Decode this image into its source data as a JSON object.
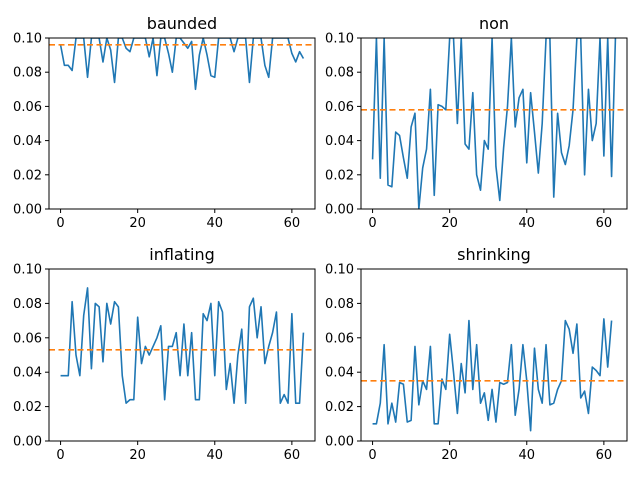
{
  "colors": {
    "series": "#1f77b4",
    "mean": "#ff7f0e",
    "axes": "#000000"
  },
  "chart_data": [
    {
      "type": "line",
      "title": "baunded",
      "xlim": [
        -3,
        66
      ],
      "ylim": [
        0,
        0.1
      ],
      "xticks": [
        0,
        20,
        40,
        60
      ],
      "yticks": [
        0.0,
        0.02,
        0.04,
        0.06,
        0.08,
        0.1
      ],
      "ytick_labels": [
        "0.00",
        "0.02",
        "0.04",
        "0.06",
        "0.08",
        "0.10"
      ],
      "mean_line": 0.096,
      "series": [
        {
          "values": [
            0.096,
            0.084,
            0.084,
            0.081,
            0.1,
            0.1,
            0.1,
            0.077,
            0.1,
            0.1,
            0.1,
            0.086,
            0.1,
            0.093,
            0.074,
            0.1,
            0.1,
            0.094,
            0.092,
            0.1,
            0.1,
            0.1,
            0.1,
            0.089,
            0.1,
            0.078,
            0.1,
            0.1,
            0.091,
            0.08,
            0.1,
            0.1,
            0.097,
            0.094,
            0.098,
            0.07,
            0.09,
            0.1,
            0.09,
            0.078,
            0.077,
            0.1,
            0.1,
            0.1,
            0.1,
            0.092,
            0.1,
            0.1,
            0.1,
            0.074,
            0.1,
            0.1,
            0.1,
            0.084,
            0.077,
            0.1,
            0.1,
            0.1,
            0.1,
            0.1,
            0.091,
            0.086,
            0.092,
            0.088
          ]
        }
      ]
    },
    {
      "type": "line",
      "title": "non",
      "xlim": [
        -3,
        66
      ],
      "ylim": [
        0,
        0.1
      ],
      "xticks": [
        0,
        20,
        40,
        60
      ],
      "yticks": [
        0.0,
        0.02,
        0.04,
        0.06,
        0.08,
        0.1
      ],
      "ytick_labels": [
        "0.00",
        "0.02",
        "0.04",
        "0.06",
        "0.08",
        "0.10"
      ],
      "mean_line": 0.058,
      "series": [
        {
          "values": [
            0.029,
            0.1,
            0.018,
            0.1,
            0.014,
            0.013,
            0.045,
            0.043,
            0.03,
            0.018,
            0.048,
            0.056,
            0.0,
            0.024,
            0.035,
            0.07,
            0.008,
            0.061,
            0.06,
            0.058,
            0.1,
            0.1,
            0.05,
            0.1,
            0.038,
            0.035,
            0.068,
            0.02,
            0.011,
            0.04,
            0.035,
            0.1,
            0.025,
            0.005,
            0.036,
            0.06,
            0.1,
            0.048,
            0.065,
            0.07,
            0.027,
            0.068,
            0.045,
            0.021,
            0.05,
            0.1,
            0.1,
            0.007,
            0.056,
            0.033,
            0.026,
            0.037,
            0.058,
            0.1,
            0.1,
            0.02,
            0.07,
            0.04,
            0.05,
            0.1,
            0.031,
            0.1,
            0.019,
            0.1
          ]
        }
      ]
    },
    {
      "type": "line",
      "title": "inflating",
      "xlim": [
        -3,
        66
      ],
      "ylim": [
        0,
        0.1
      ],
      "xticks": [
        0,
        20,
        40,
        60
      ],
      "yticks": [
        0.0,
        0.02,
        0.04,
        0.06,
        0.08,
        0.1
      ],
      "ytick_labels": [
        "0.00",
        "0.02",
        "0.04",
        "0.06",
        "0.08",
        "0.10"
      ],
      "mean_line": 0.053,
      "series": [
        {
          "values": [
            0.038,
            0.038,
            0.038,
            0.081,
            0.05,
            0.038,
            0.073,
            0.089,
            0.042,
            0.08,
            0.078,
            0.046,
            0.08,
            0.068,
            0.081,
            0.078,
            0.038,
            0.022,
            0.024,
            0.024,
            0.072,
            0.045,
            0.055,
            0.05,
            0.055,
            0.06,
            0.067,
            0.024,
            0.055,
            0.055,
            0.063,
            0.038,
            0.068,
            0.038,
            0.063,
            0.024,
            0.024,
            0.074,
            0.07,
            0.08,
            0.038,
            0.081,
            0.075,
            0.03,
            0.045,
            0.022,
            0.05,
            0.065,
            0.022,
            0.078,
            0.083,
            0.06,
            0.078,
            0.045,
            0.055,
            0.063,
            0.075,
            0.022,
            0.027,
            0.022,
            0.074,
            0.022,
            0.022,
            0.063
          ]
        }
      ]
    },
    {
      "type": "line",
      "title": "shrinking",
      "xlim": [
        -3,
        66
      ],
      "ylim": [
        0,
        0.1
      ],
      "xticks": [
        0,
        20,
        40,
        60
      ],
      "yticks": [
        0.0,
        0.02,
        0.04,
        0.06,
        0.08,
        0.1
      ],
      "ytick_labels": [
        "0.00",
        "0.02",
        "0.04",
        "0.06",
        "0.08",
        "0.10"
      ],
      "mean_line": 0.035,
      "series": [
        {
          "values": [
            0.01,
            0.01,
            0.022,
            0.056,
            0.01,
            0.022,
            0.011,
            0.034,
            0.033,
            0.011,
            0.012,
            0.055,
            0.021,
            0.035,
            0.03,
            0.055,
            0.01,
            0.01,
            0.036,
            0.03,
            0.062,
            0.04,
            0.016,
            0.045,
            0.028,
            0.07,
            0.03,
            0.056,
            0.022,
            0.028,
            0.012,
            0.03,
            0.011,
            0.034,
            0.033,
            0.034,
            0.056,
            0.015,
            0.03,
            0.056,
            0.035,
            0.006,
            0.054,
            0.03,
            0.022,
            0.056,
            0.021,
            0.022,
            0.03,
            0.035,
            0.07,
            0.065,
            0.051,
            0.068,
            0.025,
            0.029,
            0.016,
            0.043,
            0.041,
            0.038,
            0.071,
            0.043,
            0.07
          ]
        }
      ]
    }
  ]
}
